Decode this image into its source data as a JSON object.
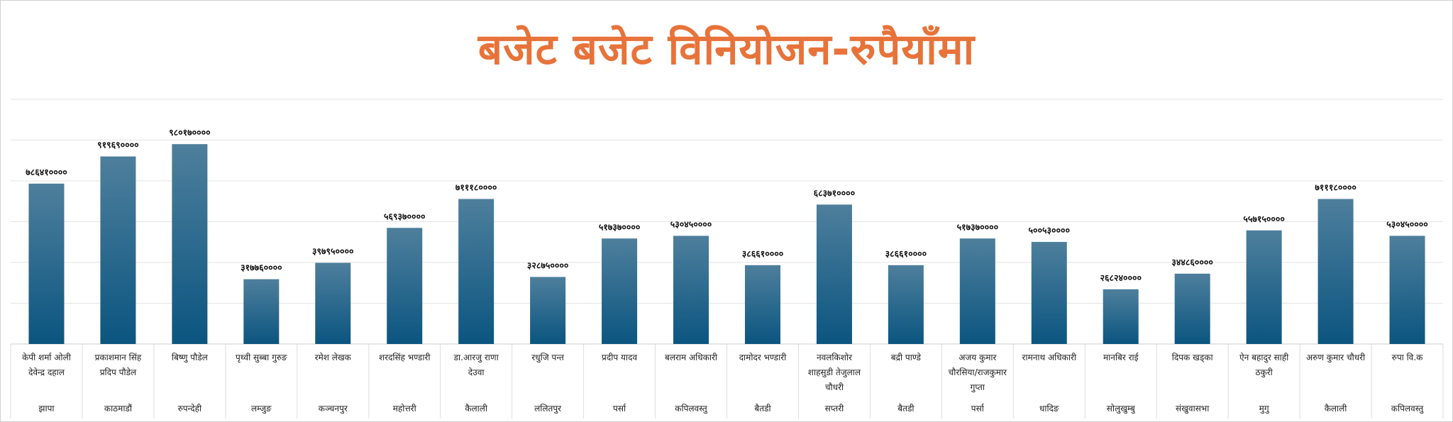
{
  "chart_data": {
    "type": "bar",
    "title": "बजेट बजेट विनियोजन-रुपैयाँमा",
    "colors": {
      "title": "#E8733A",
      "bar_top": "#4E7F9C",
      "bar_bottom": "#0B5580",
      "grid": "#e3e3e3"
    },
    "grid": true,
    "ylim": [
      0,
      1200000000
    ],
    "categories": [
      [
        "केपी शर्मा ओली",
        "देवेन्द्र दहाल"
      ],
      [
        "प्रकाशमान सिंह",
        "प्रदिप पौडेल"
      ],
      [
        "बिष्णु पौडेल"
      ],
      [
        "पृथ्वी सुब्बा गुरुङ"
      ],
      [
        "रमेश लेखक"
      ],
      [
        "शरदसिंह भण्डारी"
      ],
      [
        "डा.आरजु राणा",
        "देउवा"
      ],
      [
        "रधुजि पन्त"
      ],
      [
        "प्रदीप यादव"
      ],
      [
        "बलराम अधिकारी"
      ],
      [
        "दामोदर भण्डारी"
      ],
      [
        "नवलकिशोर",
        "शाहसुडी तेजुलाल",
        "चौधरी"
      ],
      [
        "बद्री पाण्डे"
      ],
      [
        "अजय कुमार",
        "चौरसिया/राजकुमार",
        "गुप्ता"
      ],
      [
        "रामनाथ अधिकारी"
      ],
      [
        "मानबिर राई"
      ],
      [
        "दिपक खड्का"
      ],
      [
        "ऐन बहादुर साही",
        "ठकुरी"
      ],
      [
        "अरुण कुमार चौधरी"
      ],
      [
        "रुपा वि.क"
      ]
    ],
    "districts": [
      "झापा",
      "काठमाडौं",
      "रुपन्देही",
      "लम्जुङ",
      "कञ्चनपुर",
      "महोत्तरी",
      "कैलाली",
      "ललितपुर",
      "पर्सा",
      "कपिलवस्तु",
      "बैतडी",
      "सप्तरी",
      "बैतडी",
      "पर्सा",
      "धादिङ",
      "सोलुखुम्बु",
      "संखुवासभा",
      "मुगु",
      "कैलाली",
      "कपिलवस्तु"
    ],
    "values": [
      786410000,
      919690000,
      980170000,
      317760000,
      397950000,
      569370000,
      711180000,
      328750000,
      517370000,
      530450000,
      386610000,
      683710000,
      386610000,
      517370000,
      500530000,
      268240000,
      344860000,
      557150000,
      711180000,
      530450000
    ],
    "value_labels": [
      "७८६४१००००",
      "९१९६९००००",
      "९८०१७००००",
      "३१७७६००००",
      "३९७९५००००",
      "५६९३७००००",
      "७१११८००००",
      "३२८७५००००",
      "५१७३७००००",
      "५३०४५००००",
      "३८६६१००००",
      "६८३७१००००",
      "३८६६१००००",
      "५१७३७००००",
      "५००५३००००",
      "२६८२४००००",
      "३४४८६००००",
      "५५७१५००००",
      "७१११८००००",
      "५३०४५००००"
    ]
  }
}
